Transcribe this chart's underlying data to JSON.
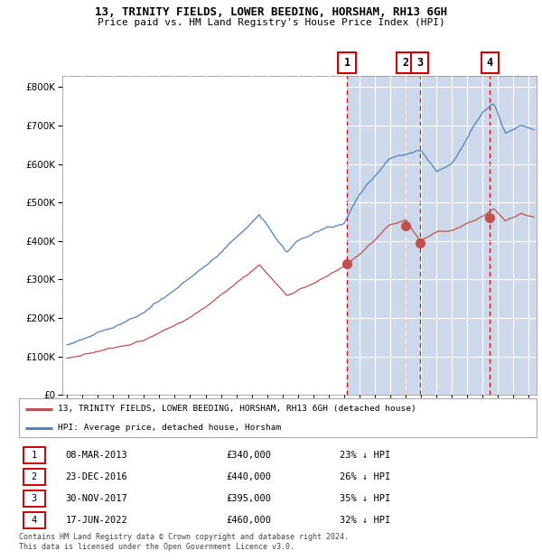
{
  "title": "13, TRINITY FIELDS, LOWER BEEDING, HORSHAM, RH13 6GH",
  "subtitle": "Price paid vs. HM Land Registry's House Price Index (HPI)",
  "legend_label_red": "13, TRINITY FIELDS, LOWER BEEDING, HORSHAM, RH13 6GH (detached house)",
  "legend_label_blue": "HPI: Average price, detached house, Horsham",
  "footer1": "Contains HM Land Registry data © Crown copyright and database right 2024.",
  "footer2": "This data is licensed under the Open Government Licence v3.0.",
  "transactions": [
    {
      "num": 1,
      "date": "08-MAR-2013",
      "price": 340000,
      "pct": "23% ↓ HPI",
      "year": 2013.18
    },
    {
      "num": 2,
      "date": "23-DEC-2016",
      "price": 440000,
      "pct": "26% ↓ HPI",
      "year": 2016.98
    },
    {
      "num": 3,
      "date": "30-NOV-2017",
      "price": 395000,
      "pct": "35% ↓ HPI",
      "year": 2017.92
    },
    {
      "num": 4,
      "date": "17-JUN-2022",
      "price": 460000,
      "pct": "32% ↓ HPI",
      "year": 2022.46
    }
  ],
  "ylim": [
    0,
    830000
  ],
  "xlim_start": 1994.7,
  "xlim_end": 2025.5,
  "background_color": "#ffffff",
  "shade_color": "#cdd9ea",
  "grid_color": "#ffffff",
  "red_line_color": "#c0504d",
  "blue_line_color": "#4f81bd",
  "dashed_color": "#cc0000",
  "transaction_box_color": "#cc0000",
  "first_transaction_year": 2013.18
}
